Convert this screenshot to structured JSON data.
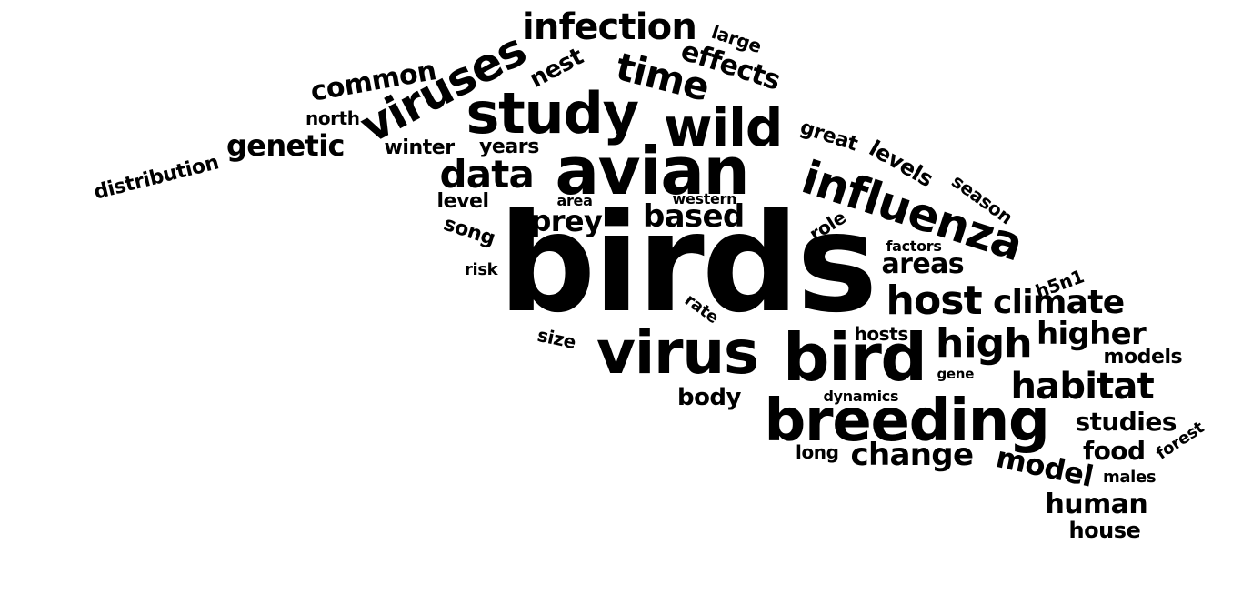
{
  "word_cloud": {
    "text_color": "#000000",
    "background_color": "#ffffff",
    "words": [
      {
        "text": "birds"
      },
      {
        "text": "avian"
      },
      {
        "text": "virus"
      },
      {
        "text": "bird"
      },
      {
        "text": "breeding"
      },
      {
        "text": "study"
      },
      {
        "text": "wild"
      },
      {
        "text": "influenza"
      },
      {
        "text": "viruses"
      },
      {
        "text": "infection"
      },
      {
        "text": "time"
      },
      {
        "text": "data"
      },
      {
        "text": "host"
      },
      {
        "text": "high"
      },
      {
        "text": "habitat"
      },
      {
        "text": "climate"
      },
      {
        "text": "higher"
      },
      {
        "text": "change"
      },
      {
        "text": "genetic"
      },
      {
        "text": "based"
      },
      {
        "text": "effects"
      },
      {
        "text": "common"
      },
      {
        "text": "nest"
      },
      {
        "text": "prey"
      },
      {
        "text": "areas"
      },
      {
        "text": "model"
      },
      {
        "text": "studies"
      },
      {
        "text": "human"
      },
      {
        "text": "food"
      },
      {
        "text": "body"
      },
      {
        "text": "levels"
      },
      {
        "text": "great"
      },
      {
        "text": "season"
      },
      {
        "text": "distribution"
      },
      {
        "text": "winter"
      },
      {
        "text": "years"
      },
      {
        "text": "north"
      },
      {
        "text": "large"
      },
      {
        "text": "level"
      },
      {
        "text": "song"
      },
      {
        "text": "role"
      },
      {
        "text": "rate"
      },
      {
        "text": "size"
      },
      {
        "text": "models"
      },
      {
        "text": "hosts"
      },
      {
        "text": "house"
      },
      {
        "text": "long"
      },
      {
        "text": "forest"
      },
      {
        "text": "h5n1"
      },
      {
        "text": "males"
      },
      {
        "text": "factors"
      },
      {
        "text": "risk"
      },
      {
        "text": "area"
      },
      {
        "text": "western"
      },
      {
        "text": "dynamics"
      },
      {
        "text": "gene"
      }
    ]
  }
}
